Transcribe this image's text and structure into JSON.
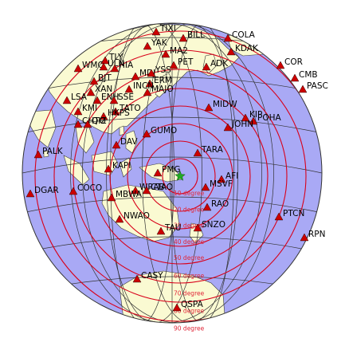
{
  "map": {
    "colors": {
      "ocean": "#a9a9f5",
      "land": "#fafad2",
      "coast": "#3a3a3a",
      "graticule": "#333333",
      "ring": "#d8001a",
      "station": "#cc0000",
      "epicenter": "#22aa22"
    },
    "epicenter_icon": "star-icon",
    "station_icon": "triangle-icon",
    "distance_labels": [
      "10 degree",
      "20 degree",
      "30 degree",
      "40 degree",
      "50 degree",
      "60 degree",
      "70 degree",
      "80 degree",
      "90 degree"
    ],
    "stations": [
      "TIXI",
      "BILL",
      "COLA",
      "YAK",
      "MA2",
      "KDAK",
      "WMQ",
      "TLY",
      "ULN",
      "HIA",
      "PET",
      "ADK",
      "COR",
      "MDJ",
      "YSS",
      "ERM",
      "BJT",
      "INCN",
      "MAJO",
      "XAN",
      "ENH",
      "SSE",
      "LSA",
      "KMI",
      "TATO",
      "HKPS",
      "CHTO",
      "QIZ",
      "MIDW",
      "CMB",
      "PASC",
      "KIP",
      "POHA",
      "JOHN",
      "GUMO",
      "DAV",
      "TARA",
      "PALK",
      "KAPI",
      "PMG",
      "AFI",
      "MSVF",
      "DGAR",
      "COCO",
      "WRAB",
      "CTAO",
      "MBWA",
      "RAO",
      "NWAO",
      "SNZO",
      "PTCN",
      "TAU",
      "RPN",
      "CASY",
      "QSPA"
    ]
  }
}
